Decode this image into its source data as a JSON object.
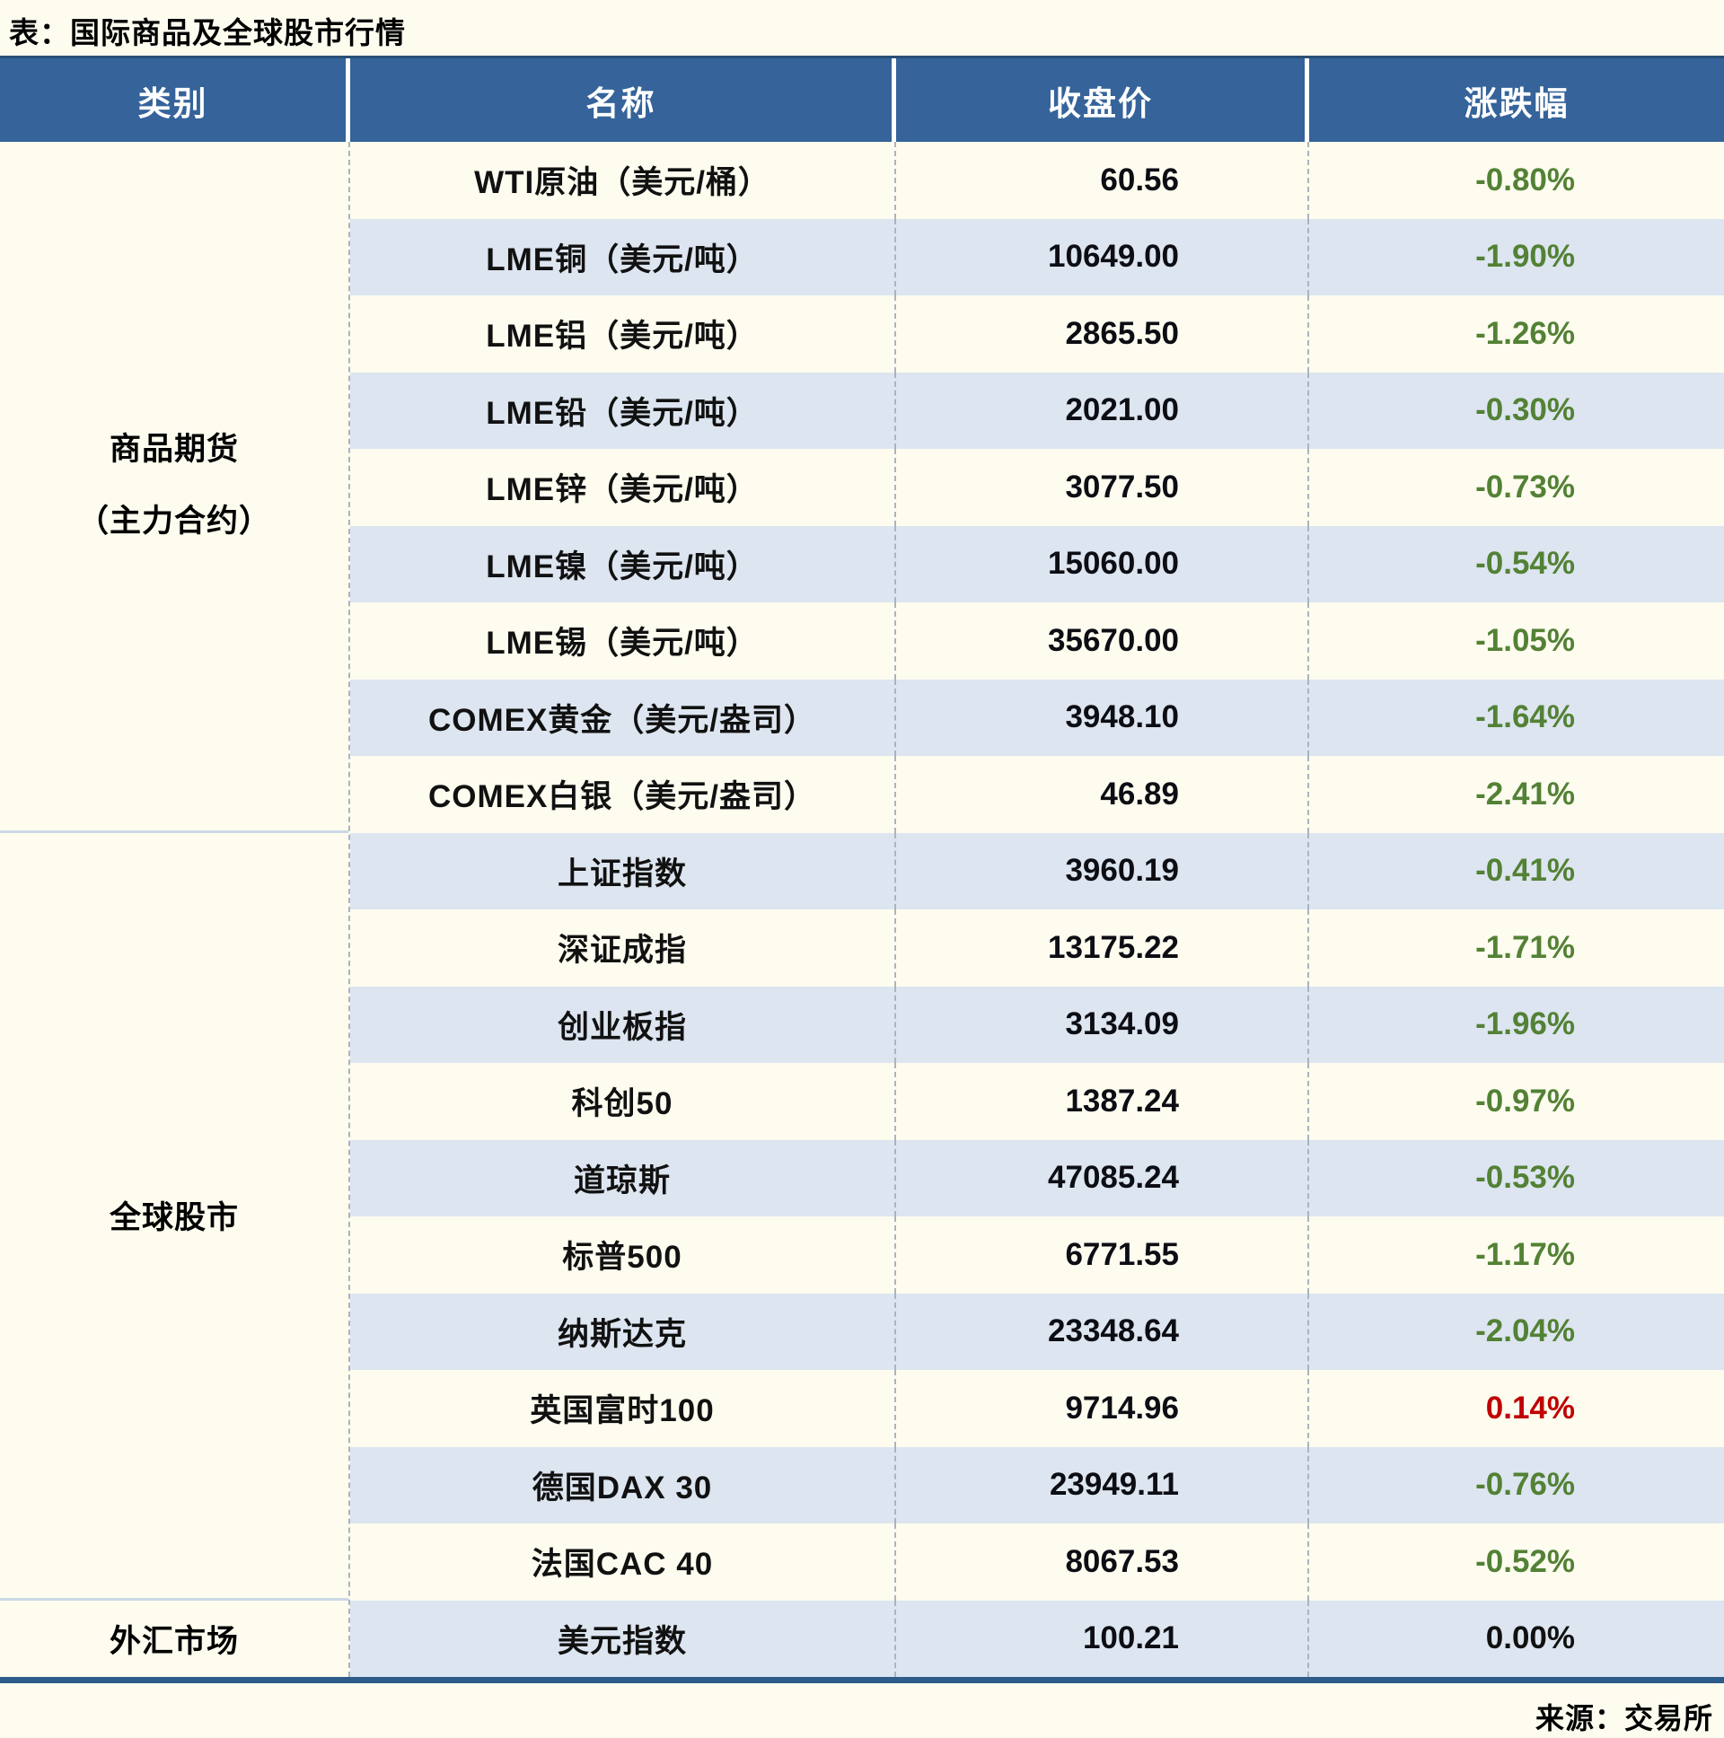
{
  "title": "表：国际商品及全球股市行情",
  "source": "来源：交易所",
  "headers": {
    "category": "类别",
    "name": "名称",
    "close": "收盘价",
    "change": "涨跌幅"
  },
  "categories": {
    "commodities": {
      "line1": "商品期货",
      "line2": "（主力合约）",
      "rows": 9
    },
    "stocks": {
      "label": "全球股市",
      "rows": 10
    },
    "fx": {
      "label": "外汇市场",
      "rows": 1
    }
  },
  "rows": [
    {
      "name": "WTI原油（美元/桶）",
      "close": "60.56",
      "change": "-0.80%",
      "direction": "down"
    },
    {
      "name": "LME铜（美元/吨）",
      "close": "10649.00",
      "change": "-1.90%",
      "direction": "down"
    },
    {
      "name": "LME铝（美元/吨）",
      "close": "2865.50",
      "change": "-1.26%",
      "direction": "down"
    },
    {
      "name": "LME铅（美元/吨）",
      "close": "2021.00",
      "change": "-0.30%",
      "direction": "down"
    },
    {
      "name": "LME锌（美元/吨）",
      "close": "3077.50",
      "change": "-0.73%",
      "direction": "down"
    },
    {
      "name": "LME镍（美元/吨）",
      "close": "15060.00",
      "change": "-0.54%",
      "direction": "down"
    },
    {
      "name": "LME锡（美元/吨）",
      "close": "35670.00",
      "change": "-1.05%",
      "direction": "down"
    },
    {
      "name": "COMEX黄金（美元/盎司）",
      "close": "3948.10",
      "change": "-1.64%",
      "direction": "down"
    },
    {
      "name": "COMEX白银（美元/盎司）",
      "close": "46.89",
      "change": "-2.41%",
      "direction": "down"
    },
    {
      "name": "上证指数",
      "close": "3960.19",
      "change": "-0.41%",
      "direction": "down"
    },
    {
      "name": "深证成指",
      "close": "13175.22",
      "change": "-1.71%",
      "direction": "down"
    },
    {
      "name": "创业板指",
      "close": "3134.09",
      "change": "-1.96%",
      "direction": "down"
    },
    {
      "name": "科创50",
      "close": "1387.24",
      "change": "-0.97%",
      "direction": "down"
    },
    {
      "name": "道琼斯",
      "close": "47085.24",
      "change": "-0.53%",
      "direction": "down"
    },
    {
      "name": "标普500",
      "close": "6771.55",
      "change": "-1.17%",
      "direction": "down"
    },
    {
      "name": "纳斯达克",
      "close": "23348.64",
      "change": "-2.04%",
      "direction": "down"
    },
    {
      "name": "英国富时100",
      "close": "9714.96",
      "change": "0.14%",
      "direction": "up"
    },
    {
      "name": "德国DAX 30",
      "close": "23949.11",
      "change": "-0.76%",
      "direction": "down"
    },
    {
      "name": "法国CAC 40",
      "close": "8067.53",
      "change": "-0.52%",
      "direction": "down"
    },
    {
      "name": "美元指数",
      "close": "100.21",
      "change": "0.00%",
      "direction": "flat"
    }
  ],
  "colors": {
    "up": "#C00000",
    "down": "#538135",
    "flat": "#111111",
    "header_bg": "#35639A",
    "row_alt_bg": "#DCE5F0",
    "page_bg": "#FDFCEF",
    "bottom_border": "#2E5C8A"
  }
}
